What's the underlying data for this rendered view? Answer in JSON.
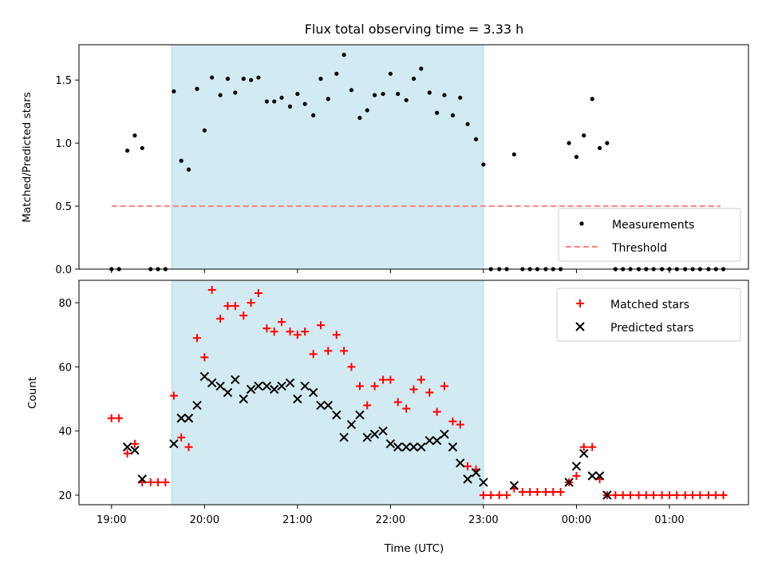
{
  "chart_data": [
    {
      "type": "scatter",
      "title": "Flux total observing time = 3.33 h",
      "xlabel": "",
      "ylabel": "Matched/Predicted stars",
      "x_ticks": [
        "19:00",
        "20:00",
        "21:00",
        "22:00",
        "23:00",
        "00:00",
        "01:00"
      ],
      "y_ticks": [
        "0.0",
        "0.5",
        "1.0",
        "1.5"
      ],
      "xlim_hours": [
        18.65,
        25.85
      ],
      "ylim": [
        0,
        1.78
      ],
      "shaded_region_hours": [
        19.65,
        23.0
      ],
      "shade_color": "#add8e6",
      "legend": {
        "placement": "lower-right",
        "entries": [
          "Measurements",
          "Threshold"
        ]
      },
      "threshold": {
        "name": "Threshold",
        "value": 0.5,
        "x_range_hours": [
          19.0,
          25.55
        ],
        "color": "#ff8080",
        "style": "dashed"
      },
      "series": [
        {
          "name": "Measurements",
          "color": "#000000",
          "marker": "dot",
          "x": [
            19.0,
            19.08,
            19.17,
            19.25,
            19.33,
            19.42,
            19.5,
            19.58,
            19.67,
            19.75,
            19.83,
            19.92,
            20.0,
            20.08,
            20.17,
            20.25,
            20.33,
            20.42,
            20.5,
            20.58,
            20.67,
            20.75,
            20.83,
            20.92,
            21.0,
            21.08,
            21.17,
            21.25,
            21.33,
            21.42,
            21.5,
            21.58,
            21.67,
            21.75,
            21.83,
            21.92,
            22.0,
            22.08,
            22.17,
            22.25,
            22.33,
            22.42,
            22.5,
            22.58,
            22.67,
            22.75,
            22.83,
            22.92,
            23.0,
            23.08,
            23.17,
            23.25,
            23.33,
            23.42,
            23.5,
            23.58,
            23.67,
            23.75,
            23.83,
            23.92,
            24.0,
            24.08,
            24.17,
            24.25,
            24.33,
            24.42,
            24.5,
            24.58,
            24.67,
            24.75,
            24.83,
            24.92,
            25.0,
            25.08,
            25.17,
            25.25,
            25.33,
            25.42,
            25.5,
            25.58
          ],
          "y": [
            0,
            0,
            0.94,
            1.06,
            0.96,
            0,
            0,
            0,
            1.41,
            0.86,
            0.79,
            1.43,
            1.1,
            1.52,
            1.38,
            1.51,
            1.4,
            1.51,
            1.5,
            1.52,
            1.33,
            1.33,
            1.36,
            1.29,
            1.39,
            1.31,
            1.22,
            1.51,
            1.35,
            1.55,
            1.7,
            1.42,
            1.2,
            1.26,
            1.38,
            1.39,
            1.55,
            1.39,
            1.34,
            1.51,
            1.59,
            1.4,
            1.24,
            1.38,
            1.22,
            1.36,
            1.15,
            1.03,
            0.83,
            0,
            0,
            0,
            0.91,
            0,
            0,
            0,
            0,
            0,
            0,
            1.0,
            0.89,
            1.06,
            1.35,
            0.96,
            1.0,
            0,
            0,
            0,
            0,
            0,
            0,
            0,
            0,
            0,
            0,
            0,
            0,
            0,
            0,
            0
          ]
        }
      ]
    },
    {
      "type": "scatter",
      "title": "",
      "xlabel": "Time (UTC)",
      "ylabel": "Count",
      "x_ticks": [
        "19:00",
        "20:00",
        "21:00",
        "22:00",
        "23:00",
        "00:00",
        "01:00"
      ],
      "y_ticks": [
        "20",
        "40",
        "60",
        "80"
      ],
      "xlim_hours": [
        18.65,
        25.85
      ],
      "ylim": [
        17,
        87
      ],
      "shaded_region_hours": [
        19.65,
        23.0
      ],
      "shade_color": "#add8e6",
      "legend": {
        "placement": "upper-right",
        "entries": [
          "Matched stars",
          "Predicted stars"
        ]
      },
      "series": [
        {
          "name": "Matched stars",
          "color": "#ff0000",
          "marker": "plus",
          "x": [
            19.0,
            19.08,
            19.17,
            19.25,
            19.33,
            19.42,
            19.5,
            19.58,
            19.67,
            19.75,
            19.83,
            19.92,
            20.0,
            20.08,
            20.17,
            20.25,
            20.33,
            20.42,
            20.5,
            20.58,
            20.67,
            20.75,
            20.83,
            20.92,
            21.0,
            21.08,
            21.17,
            21.25,
            21.33,
            21.42,
            21.5,
            21.58,
            21.67,
            21.75,
            21.83,
            21.92,
            22.0,
            22.08,
            22.17,
            22.25,
            22.33,
            22.42,
            22.5,
            22.58,
            22.67,
            22.75,
            22.83,
            22.92,
            23.0,
            23.08,
            23.17,
            23.25,
            23.33,
            23.42,
            23.5,
            23.58,
            23.67,
            23.75,
            23.83,
            23.92,
            24.0,
            24.08,
            24.17,
            24.25,
            24.33,
            24.42,
            24.5,
            24.58,
            24.67,
            24.75,
            24.83,
            24.92,
            25.0,
            25.08,
            25.17,
            25.25,
            25.33,
            25.42,
            25.5,
            25.58
          ],
          "y": [
            44,
            44,
            33,
            36,
            24,
            24,
            24,
            24,
            51,
            38,
            35,
            69,
            63,
            84,
            75,
            79,
            79,
            76,
            80,
            83,
            72,
            71,
            74,
            71,
            70,
            71,
            64,
            73,
            65,
            70,
            65,
            60,
            54,
            48,
            54,
            56,
            56,
            49,
            47,
            53,
            56,
            52,
            46,
            54,
            43,
            42,
            29,
            28,
            20,
            20,
            20,
            20,
            22,
            21,
            21,
            21,
            21,
            21,
            21,
            24,
            26,
            35,
            35,
            25,
            20,
            20,
            20,
            20,
            20,
            20,
            20,
            20,
            20,
            20,
            20,
            20,
            20,
            20,
            20,
            20
          ]
        },
        {
          "name": "Predicted stars",
          "color": "#000000",
          "marker": "x",
          "x": [
            19.17,
            19.25,
            19.33,
            19.67,
            19.75,
            19.83,
            19.92,
            20.0,
            20.08,
            20.17,
            20.25,
            20.33,
            20.42,
            20.5,
            20.58,
            20.67,
            20.75,
            20.83,
            20.92,
            21.0,
            21.08,
            21.17,
            21.25,
            21.33,
            21.42,
            21.5,
            21.58,
            21.67,
            21.75,
            21.83,
            21.92,
            22.0,
            22.08,
            22.17,
            22.25,
            22.33,
            22.42,
            22.5,
            22.58,
            22.67,
            22.75,
            22.83,
            22.92,
            23.0,
            23.33,
            23.92,
            24.0,
            24.08,
            24.17,
            24.25,
            24.33
          ],
          "y": [
            35,
            34,
            25,
            36,
            44,
            44,
            48,
            57,
            55,
            54,
            52,
            56,
            50,
            53,
            54,
            54,
            53,
            54,
            55,
            50,
            54,
            52,
            48,
            48,
            45,
            38,
            42,
            45,
            38,
            39,
            40,
            36,
            35,
            35,
            35,
            35,
            37,
            37,
            39,
            35,
            30,
            25,
            27,
            24,
            23,
            24,
            29,
            33,
            26,
            26,
            20
          ]
        }
      ]
    }
  ]
}
